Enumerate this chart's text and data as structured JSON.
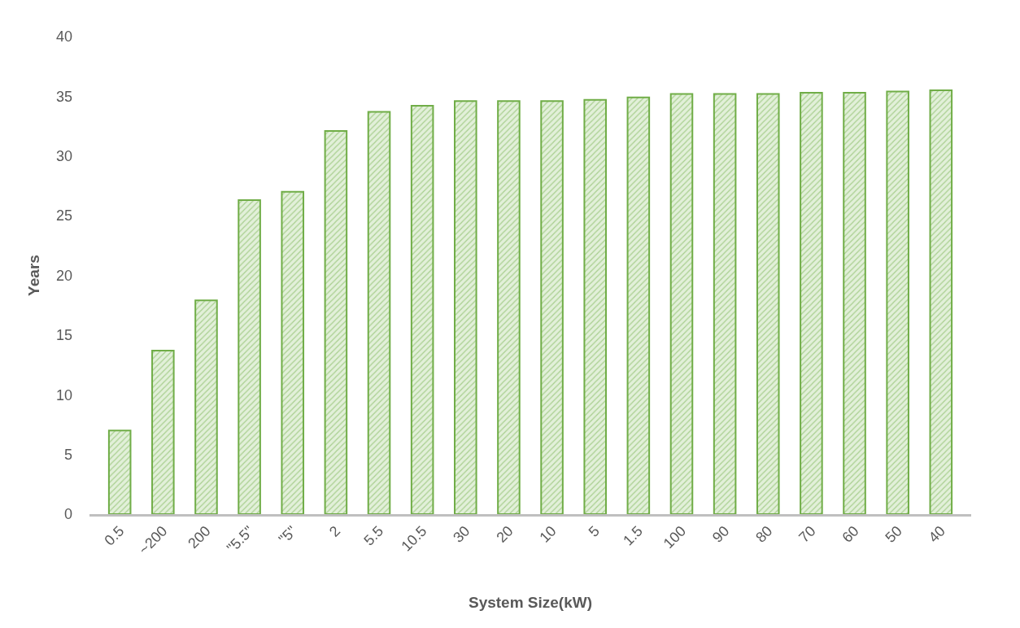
{
  "chart_data": {
    "type": "bar",
    "xlabel": "System Size(kW)",
    "ylabel": "Years",
    "categories": [
      "0.5",
      "~200",
      "200",
      "\"5.5\"",
      "\"5\"",
      "2",
      "5.5",
      "10.5",
      "30",
      "20",
      "10",
      "5",
      "1.5",
      "100",
      "90",
      "80",
      "70",
      "60",
      "50",
      "40"
    ],
    "values": [
      7.0,
      13.7,
      17.9,
      26.3,
      27.0,
      32.1,
      33.7,
      34.2,
      34.6,
      34.6,
      34.6,
      34.7,
      34.9,
      35.2,
      35.2,
      35.2,
      35.3,
      35.3,
      35.4,
      35.5
    ],
    "color": "#70ad47",
    "ylim": [
      0,
      40
    ],
    "yticks": [
      0,
      5,
      10,
      15,
      20,
      25,
      30,
      35,
      40
    ]
  }
}
